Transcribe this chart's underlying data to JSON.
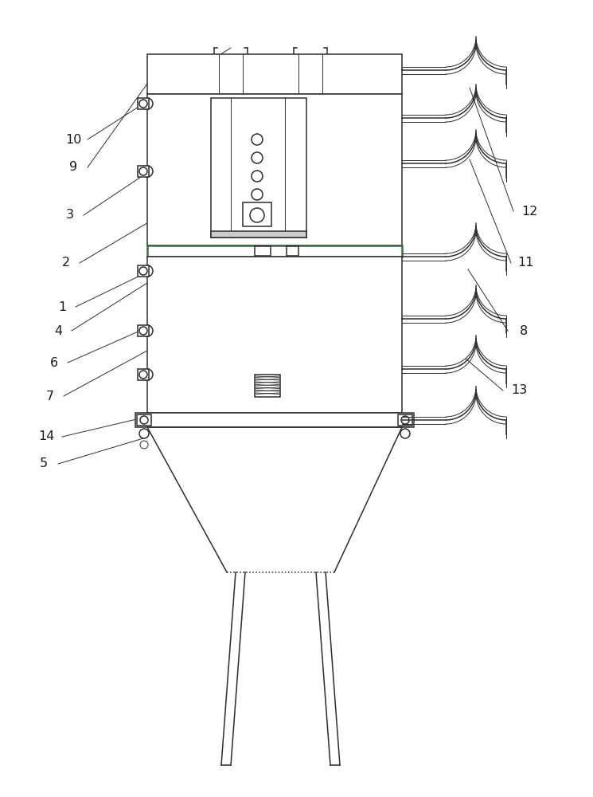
{
  "bg_color": "#ffffff",
  "line_color": "#2d2d2d",
  "label_color": "#1a1a1a",
  "green_line": "#3a6e3a",
  "fig_width": 7.45,
  "fig_height": 10.0
}
